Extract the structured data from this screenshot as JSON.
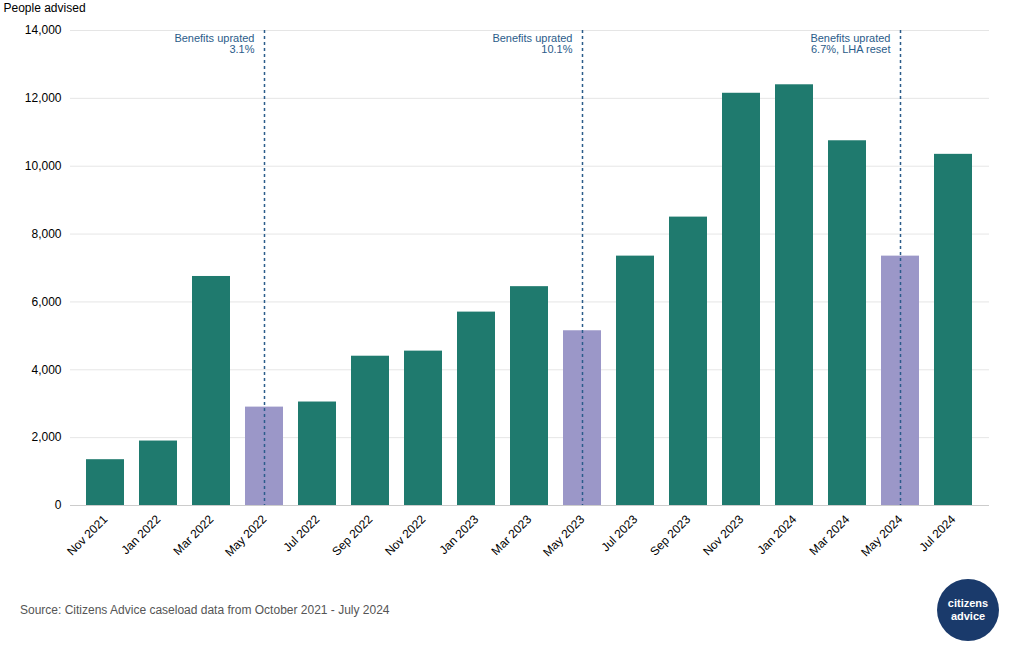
{
  "chart_data": {
    "type": "bar",
    "categories": [
      "Nov 2021",
      "Jan 2022",
      "Mar 2022",
      "May 2022",
      "Jul 2022",
      "Sep 2022",
      "Nov 2022",
      "Jan 2023",
      "Mar 2023",
      "May 2023",
      "Jul 2023",
      "Sep 2023",
      "Nov 2023",
      "Jan 2024",
      "Mar 2024",
      "May 2024",
      "Jul 2024"
    ],
    "values": [
      1350,
      1900,
      6750,
      2900,
      3050,
      4400,
      4550,
      5700,
      6450,
      5150,
      7350,
      8500,
      12150,
      12400,
      10750,
      7350,
      10350
    ],
    "colors": [
      "#1f7a6e",
      "#1f7a6e",
      "#1f7a6e",
      "#9b97c8",
      "#1f7a6e",
      "#1f7a6e",
      "#1f7a6e",
      "#1f7a6e",
      "#1f7a6e",
      "#9b97c8",
      "#1f7a6e",
      "#1f7a6e",
      "#1f7a6e",
      "#1f7a6e",
      "#1f7a6e",
      "#9b97c8",
      "#1f7a6e"
    ],
    "ylabel": "People advised",
    "ylim": [
      0,
      14000
    ],
    "yticks": [
      0,
      {
        "value": 2000,
        "label": "2,000"
      },
      {
        "value": 4000,
        "label": "4,000"
      },
      {
        "value": 6000,
        "label": "6,000"
      },
      {
        "value": 8000,
        "label": "8,000"
      },
      {
        "value": 10000,
        "label": "10,000"
      },
      {
        "value": 12000,
        "label": "12,000"
      },
      {
        "value": 14000,
        "label": "14,000"
      }
    ],
    "grid": true,
    "annotations": [
      {
        "x": "May 2022",
        "text": [
          "Benefits uprated",
          "3.1%"
        ],
        "color": "#2b5c8a"
      },
      {
        "x": "May 2023",
        "text": [
          "Benefits uprated",
          "10.1%"
        ],
        "color": "#2b5c8a"
      },
      {
        "x": "May 2024",
        "text": [
          "Benefits uprated",
          "6.7%, LHA reset"
        ],
        "color": "#2b5c8a"
      }
    ],
    "source": "Source: Citizens Advice caseload data from October 2021 - July 2024",
    "logo": {
      "text": [
        "citizens",
        "advice"
      ],
      "color": "#1a3a6b"
    }
  }
}
